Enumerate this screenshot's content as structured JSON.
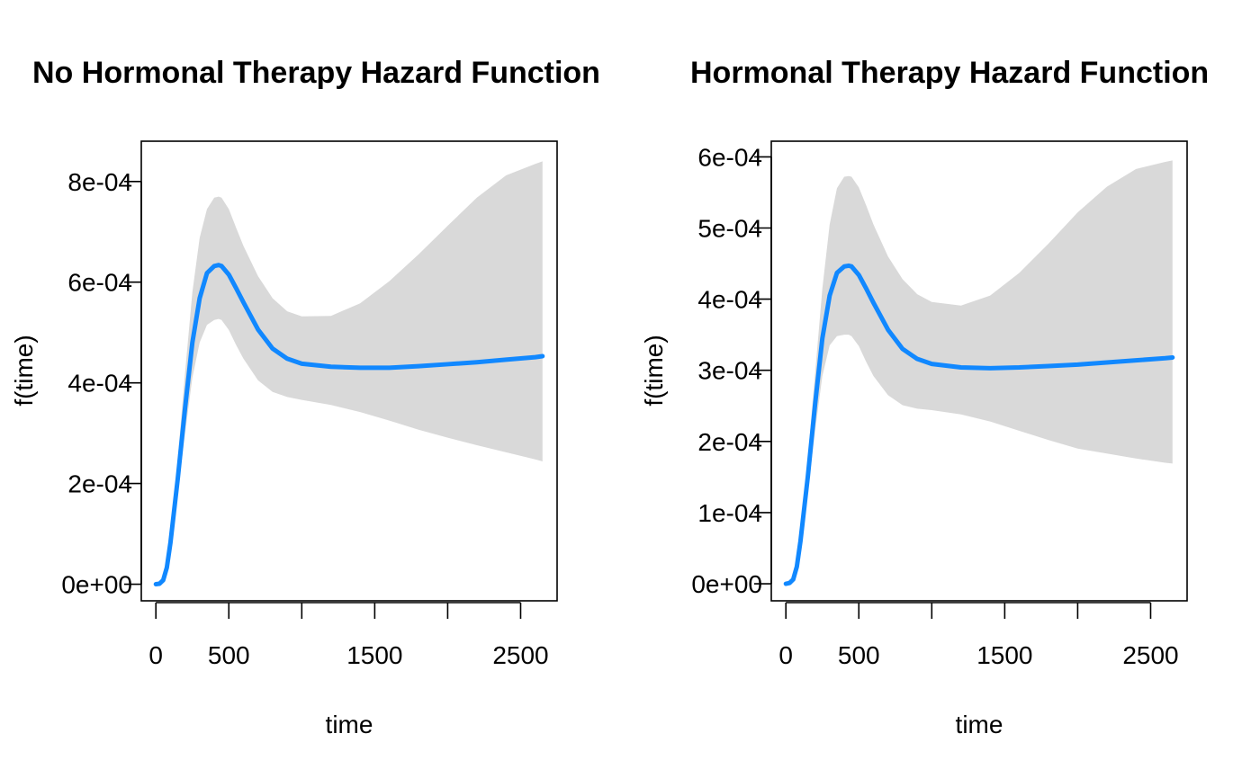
{
  "figure": {
    "colors": {
      "line": "#1188ff",
      "band": "#d9d9d9",
      "axis": "#000000",
      "background": "#ffffff"
    }
  },
  "chart_data": [
    {
      "type": "area",
      "title": "No Hormonal Therapy Hazard Function",
      "xlabel": "time",
      "ylabel": "f(time)",
      "xlim": [
        -100,
        2750
      ],
      "ylim": [
        -3.3e-05,
        0.00088
      ],
      "x_ticks": [
        0,
        500,
        1000,
        1500,
        2000,
        2500
      ],
      "x_tick_labels": [
        "0",
        "500",
        "",
        "1500",
        "",
        "2500"
      ],
      "y_ticks": [
        0,
        0.0002,
        0.0004,
        0.0006,
        0.0008
      ],
      "y_tick_labels": [
        "0e+00",
        "2e-04",
        "4e-04",
        "6e-04",
        "8e-04"
      ],
      "grid": false,
      "legend": "none",
      "series": [
        {
          "x": [
            0,
            25,
            50,
            75,
            100,
            150,
            200,
            250,
            300,
            350,
            400,
            430,
            450,
            500,
            550,
            600,
            700,
            800,
            900,
            1000,
            1200,
            1400,
            1600,
            1800,
            2000,
            2200,
            2400,
            2600,
            2650
          ],
          "y": [
            0,
            1e-06,
            8e-06,
            3.3e-05,
            8.3e-05,
            0.00021,
            0.00035,
            0.00048,
            0.000568,
            0.000618,
            0.000632,
            0.000634,
            0.000632,
            0.000615,
            0.000588,
            0.00056,
            0.000506,
            0.000468,
            0.000448,
            0.000438,
            0.000432,
            0.00043,
            0.00043,
            0.000433,
            0.000437,
            0.000441,
            0.000446,
            0.000451,
            0.000453
          ],
          "lower": [
            0,
            1e-06,
            6e-06,
            2.8e-05,
            7e-05,
            0.00018,
            0.0003,
            0.00041,
            0.00048,
            0.000515,
            0.000525,
            0.000527,
            0.000525,
            0.000505,
            0.000475,
            0.000448,
            0.000405,
            0.000382,
            0.000372,
            0.000366,
            0.000356,
            0.000342,
            0.000325,
            0.000307,
            0.000291,
            0.000276,
            0.000262,
            0.000248,
            0.000244
          ],
          "upper": [
            0,
            1e-06,
            1e-05,
            3.8e-05,
            9.8e-05,
            0.00025,
            0.00042,
            0.00058,
            0.000688,
            0.000745,
            0.000768,
            0.00077,
            0.000768,
            0.000745,
            0.000708,
            0.000672,
            0.000612,
            0.000568,
            0.000542,
            0.000532,
            0.000533,
            0.000558,
            0.000602,
            0.000655,
            0.000712,
            0.000768,
            0.000812,
            0.000835,
            0.00084
          ]
        }
      ]
    },
    {
      "type": "area",
      "title": "Hormonal Therapy Hazard Function",
      "xlabel": "time",
      "ylabel": "f(time)",
      "xlim": [
        -100,
        2750
      ],
      "ylim": [
        -2.4e-05,
        0.000622
      ],
      "x_ticks": [
        0,
        500,
        1000,
        1500,
        2000,
        2500
      ],
      "x_tick_labels": [
        "0",
        "500",
        "",
        "1500",
        "",
        "2500"
      ],
      "y_ticks": [
        0,
        0.0001,
        0.0002,
        0.0003,
        0.0004,
        0.0005,
        0.0006
      ],
      "y_tick_labels": [
        "0e+00",
        "1e-04",
        "2e-04",
        "3e-04",
        "4e-04",
        "5e-04",
        "6e-04"
      ],
      "grid": false,
      "legend": "none",
      "series": [
        {
          "x": [
            0,
            25,
            50,
            75,
            100,
            150,
            200,
            250,
            300,
            350,
            400,
            430,
            450,
            500,
            550,
            600,
            700,
            800,
            900,
            1000,
            1200,
            1400,
            1600,
            1800,
            2000,
            2200,
            2400,
            2600,
            2650
          ],
          "y": [
            0,
            1e-06,
            6e-06,
            2.4e-05,
            6e-05,
            0.00015,
            0.000252,
            0.000345,
            0.000405,
            0.000437,
            0.000446,
            0.000447,
            0.000446,
            0.000434,
            0.000415,
            0.000395,
            0.000357,
            0.00033,
            0.000316,
            0.000309,
            0.000304,
            0.000303,
            0.000304,
            0.000306,
            0.000308,
            0.000311,
            0.000314,
            0.000317,
            0.000318
          ],
          "lower": [
            0,
            1e-06,
            4e-06,
            2e-05,
            5e-05,
            0.000128,
            0.000215,
            0.000292,
            0.000335,
            0.000348,
            0.00035,
            0.00035,
            0.000348,
            0.000334,
            0.000312,
            0.000292,
            0.000265,
            0.000251,
            0.000246,
            0.000244,
            0.000238,
            0.000228,
            0.000215,
            0.000202,
            0.00019,
            0.000183,
            0.000176,
            0.00017,
            0.000169
          ],
          "upper": [
            0,
            1e-06,
            8e-06,
            2.8e-05,
            7e-05,
            0.000175,
            0.000295,
            0.000415,
            0.000505,
            0.000556,
            0.000572,
            0.000573,
            0.000572,
            0.000557,
            0.000532,
            0.000505,
            0.00046,
            0.000428,
            0.000407,
            0.000396,
            0.000391,
            0.000405,
            0.000437,
            0.000478,
            0.000522,
            0.000558,
            0.000583,
            0.000593,
            0.000595
          ]
        }
      ]
    }
  ]
}
